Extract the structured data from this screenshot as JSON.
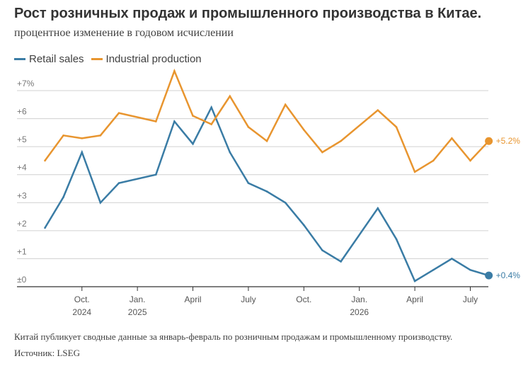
{
  "header": {
    "title": "Рост розничных продаж и промышленного производства в Китае.",
    "subtitle": "процентное изменение в годовом исчислении"
  },
  "footer": {
    "note": "Китай публикует сводные данные за январь-февраль по розничным продажам и промышленному производству.",
    "source": "Источник: LSEG"
  },
  "colors": {
    "retail": "#3a7ca5",
    "industrial": "#e8952f",
    "grid": "#d0d0d0",
    "axis": "#333333"
  },
  "chart_data": {
    "type": "line",
    "legend_position": "top-left",
    "grid": true,
    "ylim": [
      0,
      7
    ],
    "y_ticks": [
      {
        "value": 0,
        "label": "±0"
      },
      {
        "value": 1,
        "label": "+1"
      },
      {
        "value": 2,
        "label": "+2"
      },
      {
        "value": 3,
        "label": "+3"
      },
      {
        "value": 4,
        "label": "+4"
      },
      {
        "value": 5,
        "label": "+5"
      },
      {
        "value": 6,
        "label": "+6"
      },
      {
        "value": 7,
        "label": "+7%"
      }
    ],
    "x_ticks": [
      {
        "date": "2024-10",
        "label": "Oct.",
        "year": "2024"
      },
      {
        "date": "2025-01",
        "label": "Jan.",
        "year": "2025"
      },
      {
        "date": "2025-04",
        "label": "April",
        "year": ""
      },
      {
        "date": "2025-07",
        "label": "July",
        "year": ""
      },
      {
        "date": "2025-10",
        "label": "Oct.",
        "year": ""
      },
      {
        "date": "2026-01",
        "label": "Jan.",
        "year": "2026"
      },
      {
        "date": "2026-04",
        "label": "April",
        "year": ""
      },
      {
        "date": "2026-07",
        "label": "July",
        "year": ""
      }
    ],
    "series": [
      {
        "name": "Retail sales",
        "color_key": "retail",
        "end_label": "+0.4%",
        "points": [
          {
            "x": "2024-08",
            "y": 2.1
          },
          {
            "x": "2024-09",
            "y": 3.2
          },
          {
            "x": "2024-10",
            "y": 4.8
          },
          {
            "x": "2024-11",
            "y": 3.0
          },
          {
            "x": "2024-12",
            "y": 3.7
          },
          {
            "x": "2025-02",
            "y": 4.0
          },
          {
            "x": "2025-03",
            "y": 5.9
          },
          {
            "x": "2025-04",
            "y": 5.1
          },
          {
            "x": "2025-05",
            "y": 6.4
          },
          {
            "x": "2025-06",
            "y": 4.8
          },
          {
            "x": "2025-07",
            "y": 3.7
          },
          {
            "x": "2025-08",
            "y": 3.4
          },
          {
            "x": "2025-09",
            "y": 3.0
          },
          {
            "x": "2025-10",
            "y": 2.2
          },
          {
            "x": "2025-11",
            "y": 1.3
          },
          {
            "x": "2025-12",
            "y": 0.9
          },
          {
            "x": "2026-02",
            "y": 2.8
          },
          {
            "x": "2026-03",
            "y": 1.7
          },
          {
            "x": "2026-04",
            "y": 0.2
          },
          {
            "x": "2026-05",
            "y": 0.6
          },
          {
            "x": "2026-06",
            "y": 1.0
          },
          {
            "x": "2026-07",
            "y": 0.6
          },
          {
            "x": "2026-08",
            "y": 0.4
          }
        ]
      },
      {
        "name": "Industrial production",
        "color_key": "industrial",
        "end_label": "+5.2%",
        "points": [
          {
            "x": "2024-08",
            "y": 4.5
          },
          {
            "x": "2024-09",
            "y": 5.4
          },
          {
            "x": "2024-10",
            "y": 5.3
          },
          {
            "x": "2024-11",
            "y": 5.4
          },
          {
            "x": "2024-12",
            "y": 6.2
          },
          {
            "x": "2025-02",
            "y": 5.9
          },
          {
            "x": "2025-03",
            "y": 7.7
          },
          {
            "x": "2025-04",
            "y": 6.1
          },
          {
            "x": "2025-05",
            "y": 5.8
          },
          {
            "x": "2025-06",
            "y": 6.8
          },
          {
            "x": "2025-07",
            "y": 5.7
          },
          {
            "x": "2025-08",
            "y": 5.2
          },
          {
            "x": "2025-09",
            "y": 6.5
          },
          {
            "x": "2025-10",
            "y": 5.6
          },
          {
            "x": "2025-11",
            "y": 4.8
          },
          {
            "x": "2025-12",
            "y": 5.2
          },
          {
            "x": "2026-02",
            "y": 6.3
          },
          {
            "x": "2026-03",
            "y": 5.7
          },
          {
            "x": "2026-04",
            "y": 4.1
          },
          {
            "x": "2026-05",
            "y": 4.5
          },
          {
            "x": "2026-06",
            "y": 5.3
          },
          {
            "x": "2026-07",
            "y": 4.5
          },
          {
            "x": "2026-08",
            "y": 5.2
          }
        ]
      }
    ]
  }
}
